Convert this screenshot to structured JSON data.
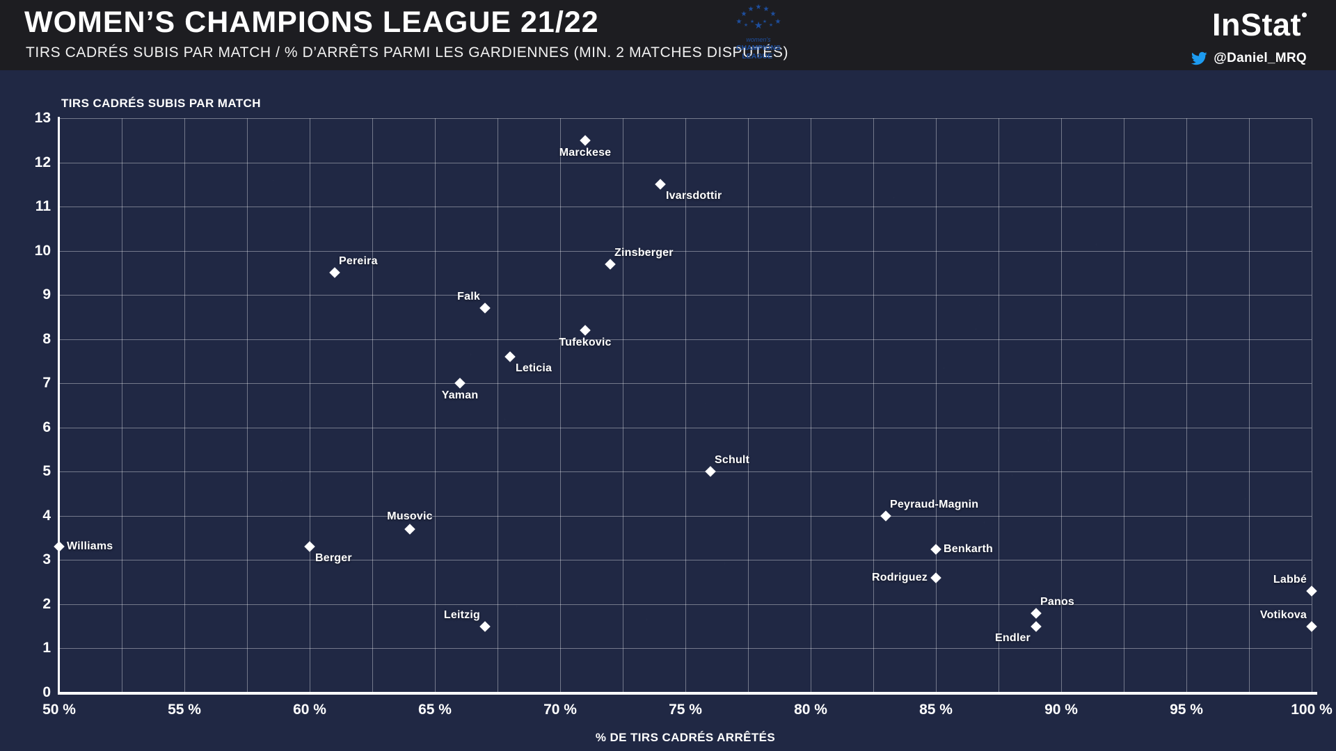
{
  "header": {
    "title": "WOMEN’S CHAMPIONS LEAGUE 21/22",
    "subtitle": "TIRS CADRÉS SUBIS PAR MATCH / % D’ARRÊTS PARMI LES GARDIENNES (MIN. 2 MATCHES DISPUTÉS)",
    "brand": "InStat",
    "twitter_handle": "@Daniel_MRQ",
    "uefa_logo_lines": [
      "women's",
      "CHAMPIONS",
      "LEAGUE˙"
    ]
  },
  "colors": {
    "background": "#202844",
    "header_background": "#1d1d21",
    "marker": "#ffffff",
    "gridline": "rgba(255,255,255,0.38)",
    "uefa_blue": "#1e4f9f",
    "twitter_blue": "#1d9bf0"
  },
  "chart_data": {
    "type": "scatter",
    "title": "",
    "xlabel": "% DE TIRS CADRÉS ARRÊTÉS",
    "ylabel": "TIRS CADRÉS SUBIS PAR MATCH",
    "xlim": [
      50,
      100
    ],
    "ylim": [
      0,
      13
    ],
    "x_tick_step": 5,
    "x_grid_step": 2.5,
    "y_tick_step": 1,
    "x_tick_suffix": " %",
    "grid": true,
    "marker": "diamond",
    "points": [
      {
        "name": "Marckese",
        "x": 71,
        "y": 12.5,
        "label_pos": "bottom"
      },
      {
        "name": "Ivarsdottir",
        "x": 74,
        "y": 11.5,
        "label_pos": "bottom-right"
      },
      {
        "name": "Zinsberger",
        "x": 72,
        "y": 9.7,
        "label_pos": "top-right"
      },
      {
        "name": "Pereira",
        "x": 61,
        "y": 9.5,
        "label_pos": "top-right"
      },
      {
        "name": "Falk",
        "x": 67,
        "y": 8.7,
        "label_pos": "top-left"
      },
      {
        "name": "Tufekovic",
        "x": 71,
        "y": 8.2,
        "label_pos": "bottom"
      },
      {
        "name": "Leticia",
        "x": 68,
        "y": 7.6,
        "label_pos": "bottom-right"
      },
      {
        "name": "Yaman",
        "x": 66,
        "y": 7.0,
        "label_pos": "bottom"
      },
      {
        "name": "Schult",
        "x": 76,
        "y": 5.0,
        "label_pos": "top-right"
      },
      {
        "name": "Peyraud-Magnin",
        "x": 83,
        "y": 4.0,
        "label_pos": "top-right"
      },
      {
        "name": "Musovic",
        "x": 64,
        "y": 3.7,
        "label_pos": "top"
      },
      {
        "name": "Williams",
        "x": 50,
        "y": 3.3,
        "label_pos": "right"
      },
      {
        "name": "Berger",
        "x": 60,
        "y": 3.3,
        "label_pos": "bottom-right"
      },
      {
        "name": "Benkarth",
        "x": 85,
        "y": 3.25,
        "label_pos": "right"
      },
      {
        "name": "Rodriguez",
        "x": 85,
        "y": 2.6,
        "label_pos": "left"
      },
      {
        "name": "Labbé",
        "x": 100,
        "y": 2.3,
        "label_pos": "top-left"
      },
      {
        "name": "Panos",
        "x": 89,
        "y": 1.8,
        "label_pos": "top-right"
      },
      {
        "name": "Endler",
        "x": 89,
        "y": 1.5,
        "label_pos": "bottom-left"
      },
      {
        "name": "Leitzig",
        "x": 67,
        "y": 1.5,
        "label_pos": "top-left"
      },
      {
        "name": "Votikova",
        "x": 100,
        "y": 1.5,
        "label_pos": "top-left"
      }
    ]
  }
}
